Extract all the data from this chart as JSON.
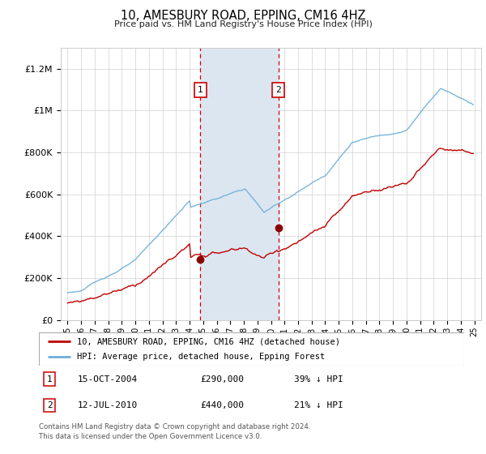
{
  "title": "10, AMESBURY ROAD, EPPING, CM16 4HZ",
  "subtitle": "Price paid vs. HM Land Registry's House Price Index (HPI)",
  "ylim": [
    0,
    1300000
  ],
  "yticks": [
    0,
    200000,
    400000,
    600000,
    800000,
    1000000,
    1200000
  ],
  "ytick_labels": [
    "£0",
    "£200K",
    "£400K",
    "£600K",
    "£800K",
    "£1M",
    "£1.2M"
  ],
  "sale1_date_x": 2004.79,
  "sale1_price": 290000,
  "sale2_date_x": 2010.54,
  "sale2_price": 440000,
  "band_x1": 2004.79,
  "band_x2": 2010.54,
  "hpi_color": "#6baed6",
  "price_color": "#c00000",
  "marker_color": "#8b0000",
  "band_color": "#dce6f1",
  "legend_label_price": "10, AMESBURY ROAD, EPPING, CM16 4HZ (detached house)",
  "legend_label_hpi": "HPI: Average price, detached house, Epping Forest",
  "annotation1_label": "15-OCT-2004",
  "annotation1_price": "£290,000",
  "annotation1_pct": "39% ↓ HPI",
  "annotation2_label": "12-JUL-2010",
  "annotation2_price": "£440,000",
  "annotation2_pct": "21% ↓ HPI",
  "footnote": "Contains HM Land Registry data © Crown copyright and database right 2024.\nThis data is licensed under the Open Government Licence v3.0.",
  "xmin": 1994.5,
  "xmax": 2025.5
}
